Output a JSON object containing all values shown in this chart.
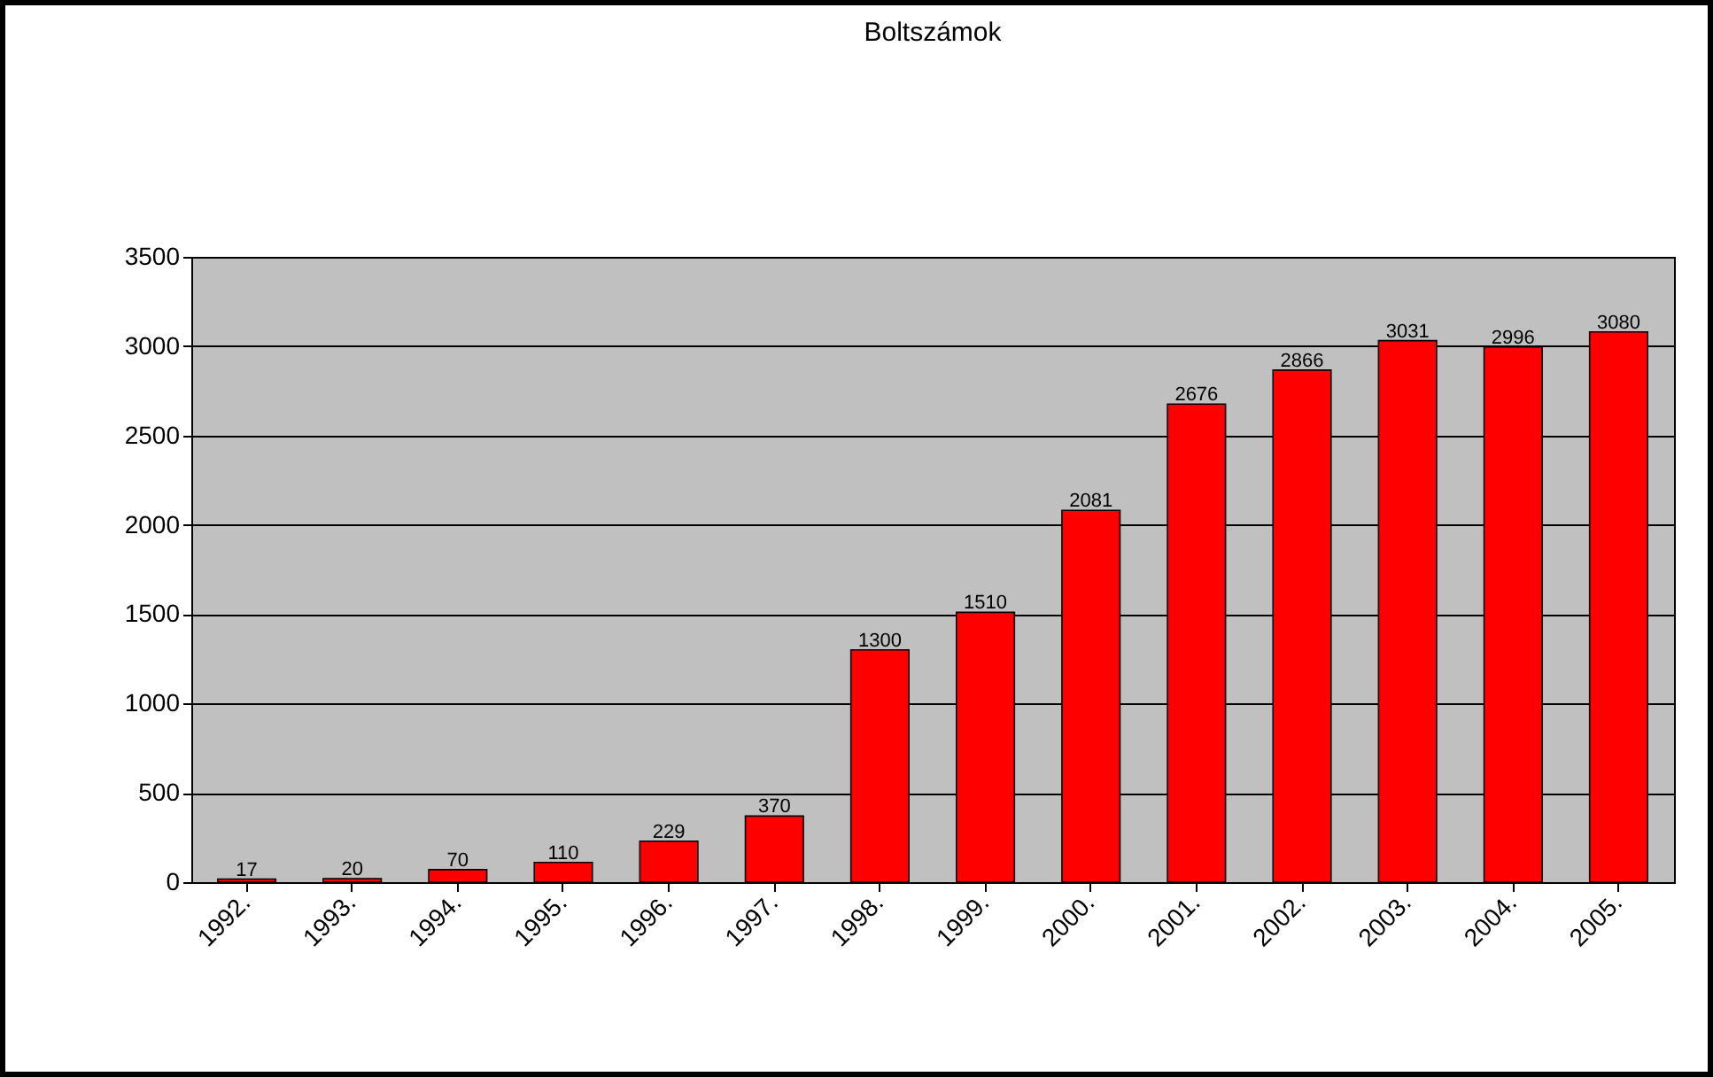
{
  "chart_data": {
    "type": "bar",
    "title": "Boltszámok",
    "categories": [
      "1992.",
      "1993.",
      "1994.",
      "1995.",
      "1996.",
      "1997.",
      "1998.",
      "1999.",
      "2000.",
      "2001.",
      "2002.",
      "2003.",
      "2004.",
      "2005."
    ],
    "values": [
      17,
      20,
      70,
      110,
      229,
      370,
      1300,
      1510,
      2081,
      2676,
      2866,
      3031,
      2996,
      3080
    ],
    "color": "#ff0000",
    "ylim": [
      0,
      3500
    ],
    "yticks": [
      0,
      500,
      1000,
      1500,
      2000,
      2500,
      3000,
      3500
    ],
    "grid": "y",
    "data_labels": true
  }
}
